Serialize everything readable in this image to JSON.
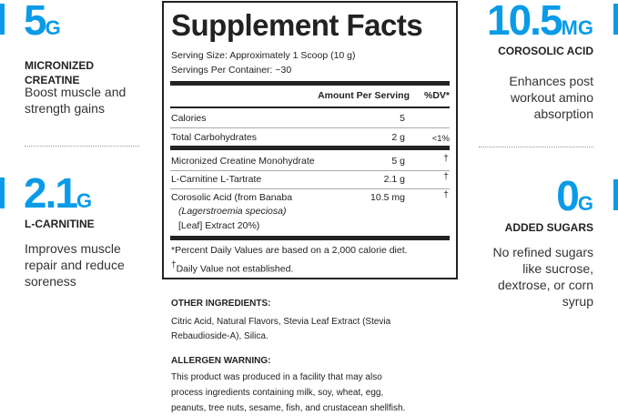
{
  "left": [
    {
      "value": "5",
      "unit": "G",
      "label_lines": [
        "MICRONIZED",
        "CREATINE"
      ],
      "desc_lines": [
        "Boost muscle and",
        "strength gains"
      ]
    },
    {
      "value": "2.1",
      "unit": "G",
      "label_lines": [
        "L-CARNITINE"
      ],
      "desc_lines": [
        "Improves muscle",
        "repair and reduce",
        "soreness"
      ]
    }
  ],
  "right": [
    {
      "value": "10.5",
      "unit": "MG",
      "label_lines": [
        "COROSOLIC ACID"
      ],
      "desc_lines": [
        "Enhances post",
        "workout amino",
        "absorption"
      ]
    },
    {
      "value": "0",
      "unit": "G",
      "label_lines": [
        "ADDED SUGARS"
      ],
      "desc_lines": [
        "No refined sugars",
        "like sucrose,",
        "dextrose, or corn",
        "syrup"
      ]
    }
  ],
  "facts": {
    "title": "Supplement Facts",
    "serving_size": "Serving Size: Approximately 1 Scoop (10 g)",
    "servings_per_container": "Servings Per Container: ~30",
    "header_amount": "Amount Per Serving",
    "header_dv": "%DV*",
    "rows": [
      {
        "name": "Calories",
        "amount": "5",
        "dv": ""
      },
      {
        "name": "Total Carbohydrates",
        "amount": "2 g",
        "dv": "<1%"
      },
      {
        "name": "Micronized Creatine Monohydrate",
        "amount": "5 g",
        "dv": "†"
      },
      {
        "name": "L-Carnitine L-Tartrate",
        "amount": "2.1 g",
        "dv": "†"
      },
      {
        "name": "Corosolic Acid (from Banaba",
        "name_line2": "(Lagerstroemia speciosa)",
        "name_line3": "[Leaf] Extract 20%)",
        "amount": "10.5 mg",
        "dv": "†"
      }
    ],
    "footnote1": "*Percent Daily Values are based on a 2,000 calorie diet.",
    "footnote2_mark": "†",
    "footnote2": "Daily Value not established."
  },
  "other_ingredients": {
    "heading": "OTHER INGREDIENTS:",
    "lines": [
      "Citric Acid, Natural Flavors, Stevia Leaf Extract (Stevia",
      "Rebaudioside-A), Silica."
    ]
  },
  "allergen": {
    "heading": "ALLERGEN WARNING:",
    "lines": [
      "This product was produced in a facility that may also",
      "process ingredients containing milk, soy, wheat, egg,",
      "peanuts, tree nuts, sesame, fish, and crustacean shellfish."
    ]
  },
  "colors": {
    "accent": "#0a9be8"
  }
}
